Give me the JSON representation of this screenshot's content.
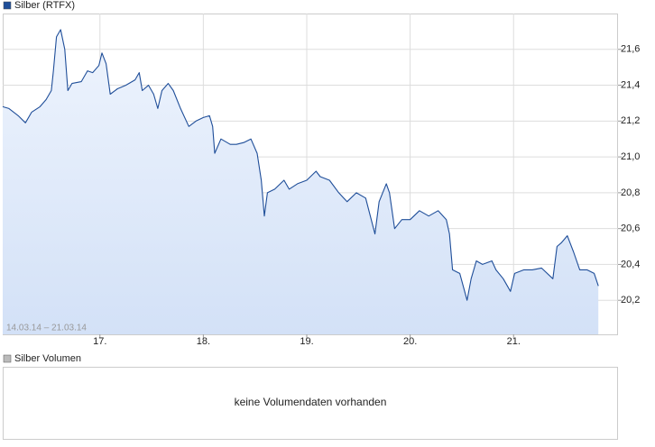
{
  "chart_data": {
    "type": "line",
    "legend": "Silber (RTFX)",
    "date_range": "14.03.14 – 21.03.14",
    "volume_legend": "Silber Volumen",
    "volume_message": "keine Volumendaten vorhanden",
    "x": [
      16.06,
      16.12,
      16.21,
      16.28,
      16.34,
      16.42,
      16.48,
      16.53,
      16.55,
      16.58,
      16.62,
      16.66,
      16.69,
      16.73,
      16.82,
      16.88,
      16.93,
      16.99,
      17.02,
      17.06,
      17.1,
      17.17,
      17.25,
      17.34,
      17.38,
      17.41,
      17.47,
      17.52,
      17.56,
      17.6,
      17.66,
      17.71,
      17.78,
      17.86,
      17.93,
      18.0,
      18.06,
      18.09,
      18.11,
      18.17,
      18.26,
      18.32,
      18.39,
      18.46,
      18.52,
      18.56,
      18.59,
      18.62,
      18.69,
      18.78,
      18.83,
      18.91,
      19.0,
      19.09,
      19.13,
      19.22,
      19.31,
      19.39,
      19.48,
      19.57,
      19.66,
      19.7,
      19.77,
      19.8,
      19.85,
      19.92,
      20.0,
      20.09,
      20.18,
      20.27,
      20.35,
      20.38,
      20.41,
      20.48,
      20.55,
      20.59,
      20.64,
      20.7,
      20.79,
      20.83,
      20.9,
      20.97,
      21.01,
      21.1,
      21.18,
      21.27,
      21.38,
      21.42,
      21.46,
      21.52,
      21.58,
      21.64,
      21.71,
      21.78,
      21.82
    ],
    "series": [
      {
        "name": "Silber (RTFX)",
        "color": "#1f4e99",
        "values": [
          21.28,
          21.27,
          21.23,
          21.19,
          21.25,
          21.28,
          21.32,
          21.37,
          21.48,
          21.67,
          21.71,
          21.6,
          21.37,
          21.41,
          21.42,
          21.48,
          21.47,
          21.51,
          21.58,
          21.52,
          21.35,
          21.38,
          21.4,
          21.43,
          21.47,
          21.37,
          21.4,
          21.35,
          21.27,
          21.37,
          21.41,
          21.37,
          21.27,
          21.17,
          21.2,
          21.22,
          21.23,
          21.17,
          21.02,
          21.1,
          21.07,
          21.07,
          21.08,
          21.1,
          21.02,
          20.87,
          20.67,
          20.8,
          20.82,
          20.87,
          20.82,
          20.85,
          20.87,
          20.92,
          20.89,
          20.87,
          20.8,
          20.75,
          20.8,
          20.77,
          20.57,
          20.75,
          20.85,
          20.8,
          20.6,
          20.65,
          20.65,
          20.7,
          20.67,
          20.7,
          20.65,
          20.57,
          20.37,
          20.35,
          20.2,
          20.32,
          20.42,
          20.4,
          20.42,
          20.37,
          20.32,
          20.25,
          20.35,
          20.37,
          20.37,
          20.38,
          20.32,
          20.5,
          20.52,
          20.56,
          20.47,
          20.37,
          20.37,
          20.35,
          20.28
        ]
      }
    ],
    "xlim": [
      16.06,
      22.01
    ],
    "ylim": [
      20.01,
      21.8
    ],
    "xticks": [
      {
        "value": 17,
        "label": "17."
      },
      {
        "value": 18,
        "label": "18."
      },
      {
        "value": 19,
        "label": "19."
      },
      {
        "value": 20,
        "label": "20."
      },
      {
        "value": 21,
        "label": "21."
      }
    ],
    "yticks": [
      {
        "value": 20.2,
        "label": "20,2"
      },
      {
        "value": 20.4,
        "label": "20,4"
      },
      {
        "value": 20.6,
        "label": "20,6"
      },
      {
        "value": 20.8,
        "label": "20,8"
      },
      {
        "value": 21.0,
        "label": "21,0"
      },
      {
        "value": 21.2,
        "label": "21,2"
      },
      {
        "value": 21.4,
        "label": "21,4"
      },
      {
        "value": 21.6,
        "label": "21,6"
      }
    ],
    "grid": true
  }
}
